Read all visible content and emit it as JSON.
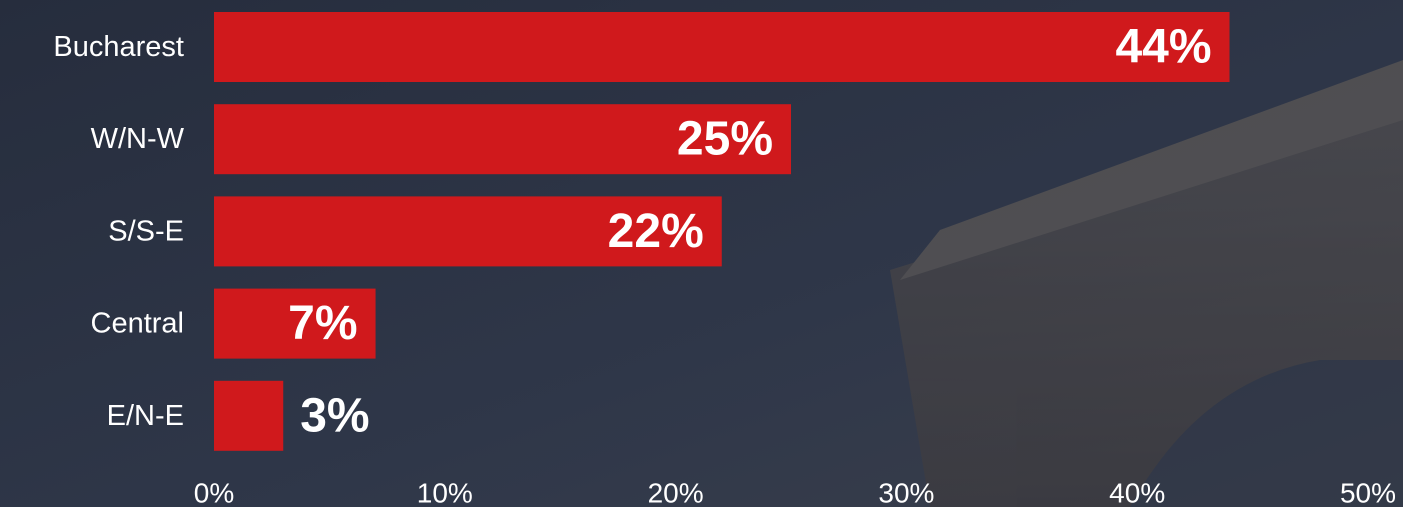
{
  "chart_data": {
    "type": "bar",
    "orientation": "horizontal",
    "categories": [
      "Bucharest",
      "W/N-W",
      "S/S-E",
      "Central",
      "E/N-E"
    ],
    "values": [
      44,
      25,
      22,
      7,
      3
    ],
    "value_labels": [
      "44%",
      "25%",
      "22%",
      "7%",
      "3%"
    ],
    "color": "#d0191c",
    "xlim": [
      0,
      50
    ],
    "xticks": [
      {
        "value": 0,
        "label": "0%"
      },
      {
        "value": 10,
        "label": "10%"
      },
      {
        "value": 20,
        "label": "20%"
      },
      {
        "value": 30,
        "label": "30%"
      },
      {
        "value": 40,
        "label": "40%"
      },
      {
        "value": 50,
        "label": "50%"
      }
    ],
    "grid": false
  }
}
